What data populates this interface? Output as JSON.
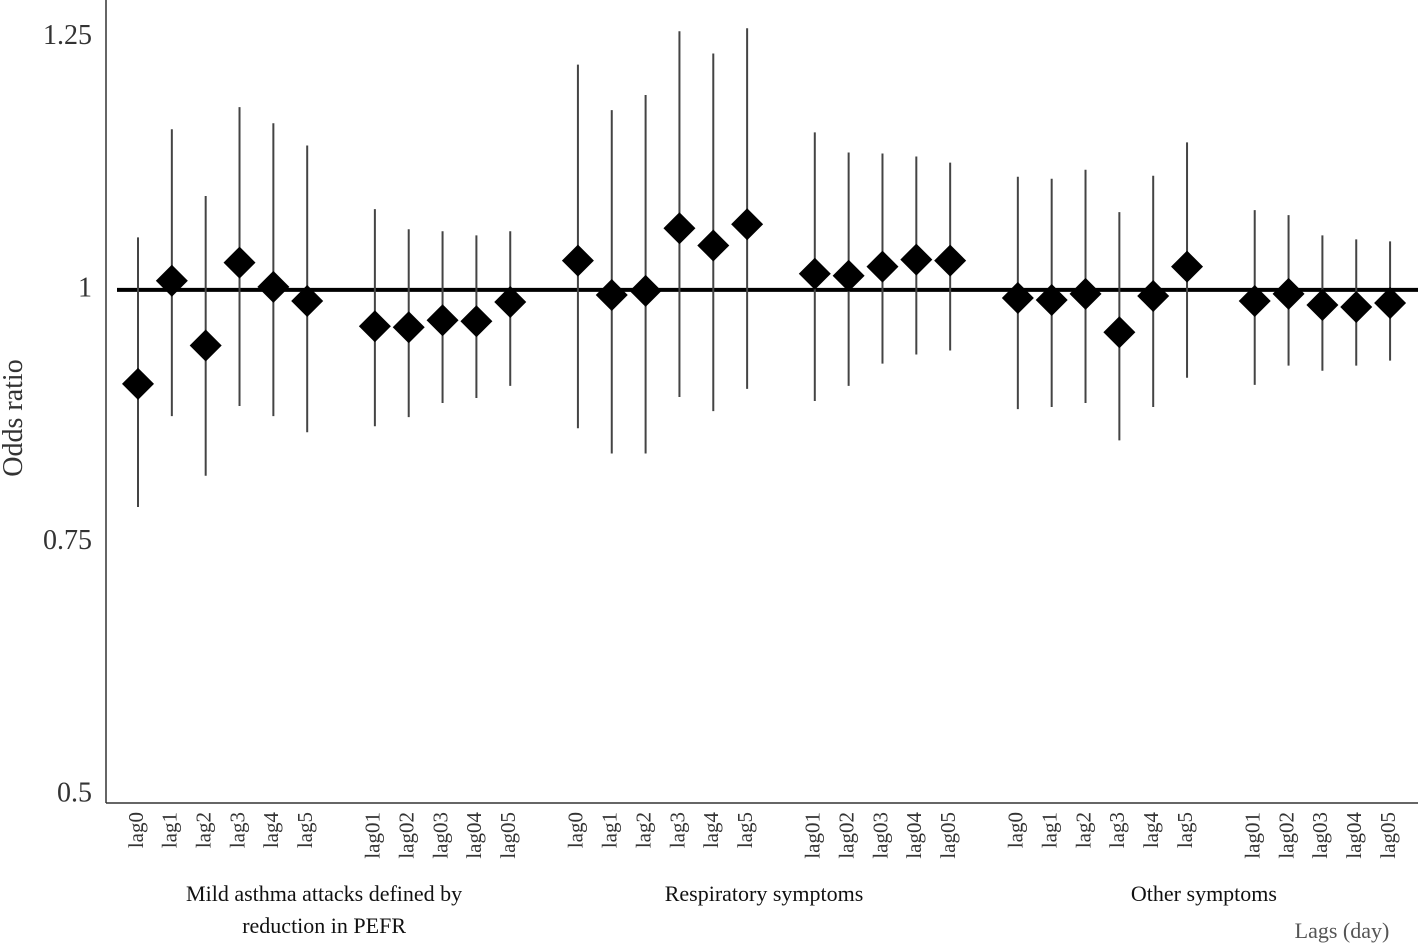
{
  "chart_data": {
    "type": "errorbar",
    "y_label": "Odds ratio",
    "x_label": "Lags (day)",
    "ylim": [
      0.492,
      1.287
    ],
    "yticks": [
      0.5,
      0.75,
      1,
      1.25
    ],
    "grid": false,
    "reference_line": 1,
    "color": "#000000",
    "errorbar_color": "#444444",
    "groups": [
      {
        "name": "Mild asthma attacks defined by reduction in PEFR",
        "categories": [
          "lag0",
          "lag1",
          "lag2",
          "lag3",
          "lag4",
          "lag5",
          null,
          "lag01",
          "lag02",
          "lag03",
          "lag04",
          "lag05"
        ],
        "values": [
          0.907,
          1.009,
          0.945,
          1.027,
          1.003,
          0.989,
          null,
          0.964,
          0.963,
          0.97,
          0.969,
          0.988
        ],
        "lower": [
          0.785,
          0.875,
          0.816,
          0.885,
          0.875,
          0.859,
          null,
          0.865,
          0.874,
          0.888,
          0.893,
          0.905
        ],
        "upper": [
          1.052,
          1.159,
          1.093,
          1.181,
          1.165,
          1.143,
          null,
          1.08,
          1.06,
          1.058,
          1.054,
          1.058
        ]
      },
      {
        "name": "Respiratory symptoms",
        "categories": [
          "lag0",
          "lag1",
          "lag2",
          "lag3",
          "lag4",
          "lag5",
          null,
          "lag01",
          "lag02",
          "lag03",
          "lag04",
          "lag05"
        ],
        "values": [
          1.029,
          0.995,
          0.999,
          1.061,
          1.044,
          1.065,
          null,
          1.016,
          1.014,
          1.023,
          1.03,
          1.029
        ],
        "lower": [
          0.863,
          0.838,
          0.838,
          0.894,
          0.88,
          0.902,
          null,
          0.89,
          0.905,
          0.927,
          0.936,
          0.94
        ],
        "upper": [
          1.223,
          1.178,
          1.193,
          1.256,
          1.234,
          1.259,
          null,
          1.156,
          1.136,
          1.135,
          1.132,
          1.126
        ]
      },
      {
        "name": "Other symptoms",
        "categories": [
          "lag0",
          "lag1",
          "lag2",
          "lag3",
          "lag4",
          "lag5",
          null,
          "lag01",
          "lag02",
          "lag03",
          "lag04",
          "lag05"
        ],
        "values": [
          0.992,
          0.99,
          0.996,
          0.958,
          0.994,
          1.023,
          null,
          0.989,
          0.996,
          0.985,
          0.983,
          0.987
        ],
        "lower": [
          0.882,
          0.884,
          0.888,
          0.851,
          0.884,
          0.913,
          null,
          0.906,
          0.925,
          0.92,
          0.925,
          0.93
        ],
        "upper": [
          1.112,
          1.11,
          1.119,
          1.077,
          1.113,
          1.146,
          null,
          1.079,
          1.074,
          1.054,
          1.05,
          1.048
        ]
      }
    ]
  }
}
